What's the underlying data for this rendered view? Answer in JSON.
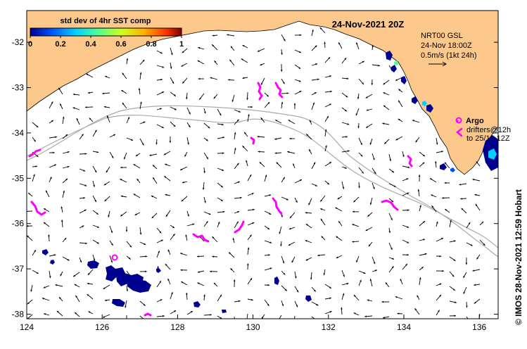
{
  "map": {
    "title": "24-Nov-2021 20Z",
    "colorbar": {
      "title": "std dev of 4hr SST comp",
      "ticks": [
        "0",
        "0.2",
        "0.4",
        "0.6",
        "0.8",
        "1"
      ],
      "range": [
        0,
        1
      ],
      "colors": [
        "#00008f",
        "#0050ff",
        "#00d0ff",
        "#50ff90",
        "#d0ff20",
        "#ffb000",
        "#ff3000",
        "#800000"
      ]
    },
    "legend": {
      "product": "NRT00 GSL",
      "time": "24-Nov 18:00Z",
      "scale": "0.5m/s (1kt 24h)",
      "argo_label": "Argo",
      "drifters_label": "drifters@12h",
      "drifters_to": "to 25/11-12Z"
    },
    "credit": "© IMOS 28-Nov-2021 12:59 Hobart",
    "x_ticks": [
      "124",
      "126",
      "128",
      "130",
      "132",
      "134",
      "136"
    ],
    "y_ticks": [
      "-32",
      "-33",
      "-34",
      "-35",
      "-36",
      "-37",
      "-38"
    ],
    "lon_range": [
      124,
      136.5
    ],
    "lat_range": [
      -31.3,
      -38.1
    ],
    "colors": {
      "land": "#fcc88c",
      "ocean": "#ffffff",
      "argo": "#ff00ff",
      "sst_low": "#00008f",
      "isobath": "#aaaaaa"
    }
  }
}
